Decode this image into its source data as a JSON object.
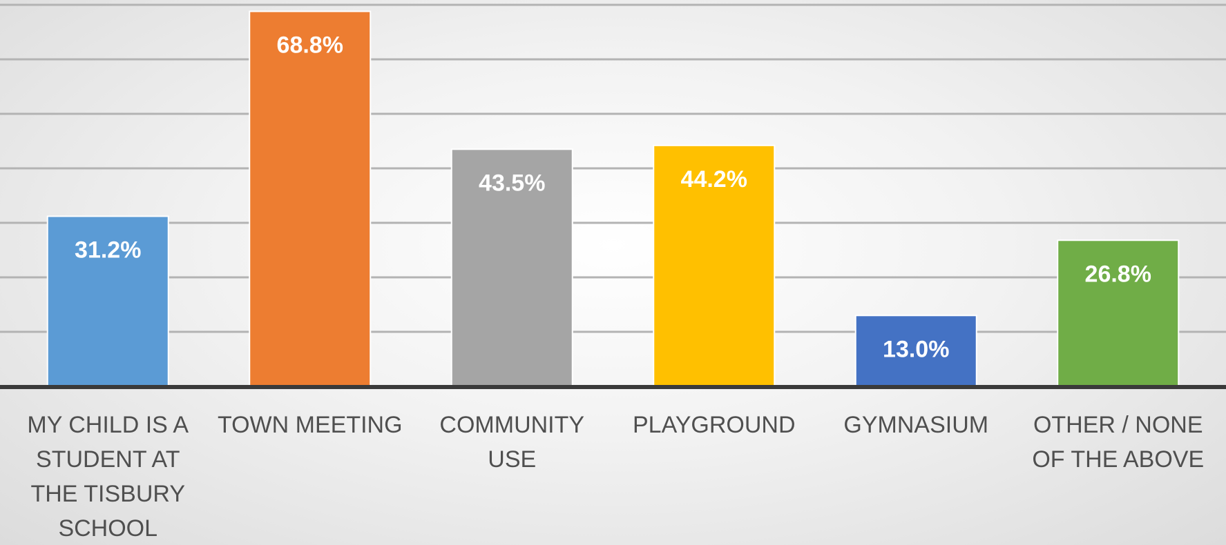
{
  "chart_data": {
    "type": "bar",
    "title": "",
    "xlabel": "",
    "ylabel": "",
    "ylim": [
      0,
      70
    ],
    "gridlines": true,
    "legend": "none",
    "categories": [
      [
        "MY CHILD IS A",
        "STUDENT AT",
        "THE TISBURY",
        "SCHOOL"
      ],
      [
        "TOWN MEETING"
      ],
      [
        "COMMUNITY",
        "USE"
      ],
      [
        "PLAYGROUND"
      ],
      [
        "GYMNASIUM"
      ],
      [
        "OTHER / NONE",
        "OF THE ABOVE"
      ]
    ],
    "values": [
      31.2,
      68.8,
      43.5,
      44.2,
      13.0,
      26.8
    ],
    "value_labels": [
      "31.2%",
      "68.8%",
      "43.5%",
      "44.2%",
      "13.0%",
      "26.8%"
    ],
    "colors": [
      "#5B9BD5",
      "#ED7D31",
      "#A5A5A5",
      "#FFC000",
      "#4472C4",
      "#70AD47"
    ]
  }
}
